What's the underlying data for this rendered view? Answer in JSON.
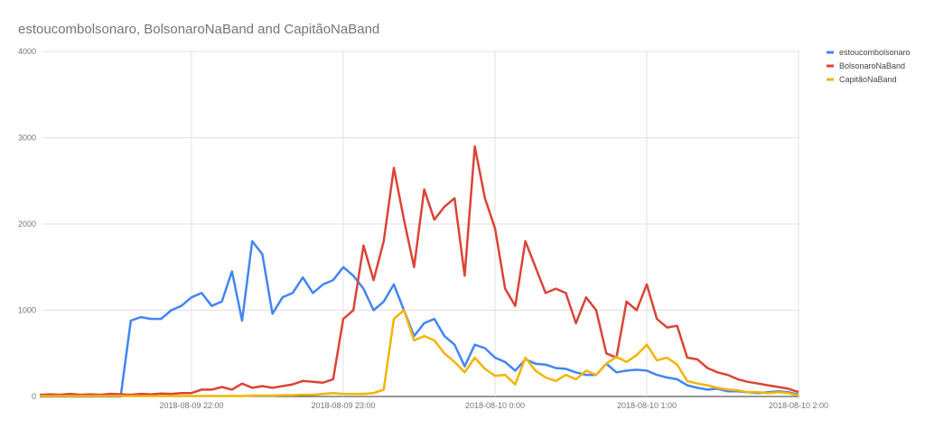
{
  "chart_data": {
    "type": "line",
    "title": "estoucombolsonaro, BolsonaroNaBand and CapitãoNaBand",
    "xlabel": "",
    "ylabel": "",
    "x_unit": "minutes after 2018-08-09 21:00",
    "xlim": [
      0,
      300
    ],
    "ylim": [
      0,
      4000
    ],
    "yticks": [
      0,
      1000,
      2000,
      3000,
      4000
    ],
    "ytick_labels": [
      "0",
      "1000",
      "2000",
      "3000",
      "4000"
    ],
    "xticks": [
      60,
      120,
      180,
      240,
      300
    ],
    "xtick_labels": [
      "2018-08-09 22:00",
      "2018-08-09 23:00",
      "2018-08-10 0:00",
      "2018-08-10 1:00",
      "2018-08-10 2:00"
    ],
    "grid": true,
    "legend_position": "right",
    "x_start": 0,
    "x_step": 4,
    "series": [
      {
        "name": "estoucombolsonaro",
        "color": "#4285f4",
        "values": [
          0,
          0,
          0,
          0,
          0,
          0,
          0,
          0,
          0,
          880,
          920,
          900,
          900,
          1000,
          1050,
          1150,
          1200,
          1050,
          1100,
          1450,
          880,
          1800,
          1650,
          960,
          1150,
          1200,
          1380,
          1200,
          1300,
          1350,
          1500,
          1400,
          1250,
          1000,
          1100,
          1300,
          1000,
          700,
          850,
          900,
          700,
          600,
          350,
          600,
          560,
          450,
          400,
          300,
          430,
          380,
          370,
          330,
          320,
          280,
          250,
          250,
          380,
          280,
          300,
          310,
          300,
          250,
          220,
          200,
          130,
          100,
          80,
          90,
          60,
          60,
          50,
          40,
          50,
          60,
          50,
          20
        ]
      },
      {
        "name": "BolsonaroNaBand",
        "color": "#db4437",
        "values": [
          20,
          25,
          20,
          30,
          20,
          25,
          20,
          30,
          25,
          20,
          30,
          25,
          35,
          30,
          40,
          40,
          80,
          80,
          110,
          80,
          150,
          100,
          120,
          100,
          120,
          140,
          180,
          170,
          160,
          200,
          900,
          1000,
          1750,
          1350,
          1800,
          2650,
          2050,
          1500,
          2400,
          2050,
          2200,
          2300,
          1400,
          2900,
          2300,
          1950,
          1250,
          1050,
          1800,
          1500,
          1200,
          1250,
          1200,
          850,
          1150,
          1000,
          500,
          450,
          1100,
          1000,
          1300,
          900,
          800,
          820,
          450,
          430,
          330,
          280,
          250,
          200,
          170,
          150,
          130,
          110,
          90,
          50
        ]
      },
      {
        "name": "CapitãoNaBand",
        "color": "#f4b400",
        "values": [
          5,
          5,
          5,
          5,
          5,
          5,
          5,
          5,
          5,
          5,
          5,
          5,
          5,
          5,
          5,
          5,
          5,
          5,
          5,
          5,
          5,
          10,
          10,
          10,
          15,
          15,
          20,
          20,
          30,
          40,
          30,
          30,
          30,
          40,
          80,
          900,
          1000,
          650,
          700,
          650,
          500,
          400,
          280,
          450,
          320,
          240,
          250,
          140,
          450,
          300,
          220,
          180,
          250,
          200,
          300,
          250,
          380,
          460,
          400,
          480,
          600,
          420,
          450,
          370,
          180,
          150,
          130,
          100,
          80,
          70,
          50,
          50,
          40,
          50,
          40,
          10
        ]
      }
    ]
  }
}
